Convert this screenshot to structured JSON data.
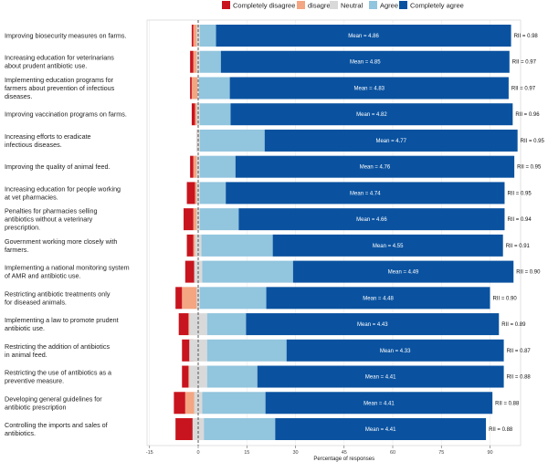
{
  "chart_data": {
    "type": "bar",
    "orientation": "horizontal-diverging-stacked",
    "xlabel": "Percentage of responses",
    "ylabel": "",
    "xlim": [
      -15,
      105
    ],
    "xticks": [
      -15,
      0,
      15,
      30,
      45,
      60,
      75,
      90
    ],
    "xtick_labels": [
      "-15",
      "0",
      "15",
      "30",
      "45",
      "60",
      "75",
      "90"
    ],
    "legend_position": "top",
    "legend": [
      {
        "key": "completely_disagree",
        "label": "Completely disagree",
        "color": "#c8141e"
      },
      {
        "key": "disagree",
        "label": "disagree",
        "color": "#f4a582"
      },
      {
        "key": "neutral",
        "label": "Neutral",
        "color": "#d9d9d9"
      },
      {
        "key": "agree",
        "label": "Agree",
        "color": "#92c5de"
      },
      {
        "key": "completely_agree",
        "label": "Completely agree",
        "color": "#0a52a0"
      }
    ],
    "categories": [
      "Improving biosecurity measures on farms.",
      "Increasing education for veterinarians about prudent antibiotic use.",
      "Implementing education programs for farmers about prevention of infectious diseases.",
      "Improving vaccination programs on farms.",
      "Increasing efforts to eradicate infectious diseases.",
      "Improving the quality of animal feed.",
      "Increasing education for people working at vet pharmacies.",
      "Penalties for pharmacies selling antibiotics without a veterinary prescription.",
      "Government working more closely with farmers.",
      "Implementing a national monitoring system of AMR and antibiotic use.",
      "Restricting antibiotic treatments only for diseased animals.",
      "Implementing a law to promote prudent antibiotic use.",
      "Restricting the addition of antibiotics in animal feed.",
      "Restricting the use of antibiotics as a preventive measure.",
      "Developing general guidelines for antibiotic prescription",
      "Controlling the imports and sales of antibiotics."
    ],
    "label_lines": [
      [
        "Improving biosecurity measures on farms."
      ],
      [
        "Increasing education for veterinarians",
        "about prudent antibiotic use."
      ],
      [
        "Implementing education programs for",
        "farmers about prevention of infectious",
        "diseases."
      ],
      [
        "Improving vaccination programs on farms."
      ],
      [
        "Increasing efforts to eradicate",
        "infectious diseases."
      ],
      [
        "Improving the quality of animal feed."
      ],
      [
        "Increasing education for people working",
        "at vet pharmacies."
      ],
      [
        "Penalties for pharmacies selling",
        "antibiotics without a veterinary",
        "prescription."
      ],
      [
        "Government working more closely with",
        "farmers."
      ],
      [
        "Implementing a national monitoring system",
        "of AMR and antibiotic use."
      ],
      [
        "Restricting antibiotic treatments only",
        "for diseased animals."
      ],
      [
        "Implementing a law to promote prudent",
        "antibiotic use."
      ],
      [
        "Restricting the addition of antibiotics",
        "in animal feed."
      ],
      [
        "Restricting the use of antibiotics as a",
        "preventive measure."
      ],
      [
        "Developing general guidelines for",
        "antibiotic prescription"
      ],
      [
        "Controlling the imports and sales of",
        "antibiotics."
      ]
    ],
    "series": [
      {
        "name": "Completely disagree",
        "values": [
          0.5,
          1,
          0.5,
          1,
          0,
          1,
          2.5,
          3,
          2,
          3,
          2,
          3,
          3.5,
          2,
          3.5,
          5.5
        ]
      },
      {
        "name": "disagree",
        "values": [
          1.5,
          1.5,
          2,
          1,
          0.5,
          1.5,
          1,
          1.5,
          1.5,
          1,
          5,
          3,
          1.5,
          3,
          4,
          1.5
        ]
      },
      {
        "name": "Neutral",
        "values": [
          1,
          1,
          0.5,
          1,
          1,
          1,
          1,
          1,
          2,
          2.5,
          1,
          5.5,
          5.5,
          5.5,
          2.5,
          3.5
        ]
      },
      {
        "name": "Agree",
        "values": [
          5,
          6.5,
          9.5,
          9.5,
          20,
          11,
          8,
          12,
          22,
          28,
          20.5,
          12,
          24.5,
          15.5,
          19.5,
          22
        ]
      },
      {
        "name": "Completely agree",
        "values": [
          91,
          89,
          86,
          87,
          78,
          86,
          86,
          82,
          71,
          68,
          69,
          78,
          67,
          76,
          70,
          65
        ]
      }
    ],
    "means": [
      "Mean = 4.86",
      "Mean = 4.85",
      "Mean = 4.83",
      "Mean = 4.82",
      "Mean = 4.77",
      "Mean = 4.76",
      "Mean = 4.74",
      "Mean = 4.66",
      "Mean = 4.55",
      "Mean = 4.49",
      "Mean = 4.48",
      "Mean = 4.43",
      "Mean = 4.33",
      "Mean = 4.41",
      "Mean = 4.41",
      "Mean = 4.41"
    ],
    "rii": [
      "RII = 0.98",
      "RII = 0.97",
      "RII = 0.97",
      "RII = 0.96",
      "RII = 0.95",
      "RII = 0.95",
      "RII = 0.95",
      "RII = 0.94",
      "RII = 0.91",
      "RII = 0.90",
      "RII = 0.90",
      "RII = 0.89",
      "RII = 0.87",
      "RII = 0.88",
      "RII = 0.88",
      "RII = 0.88"
    ],
    "reference_line": 0,
    "grid": true
  }
}
